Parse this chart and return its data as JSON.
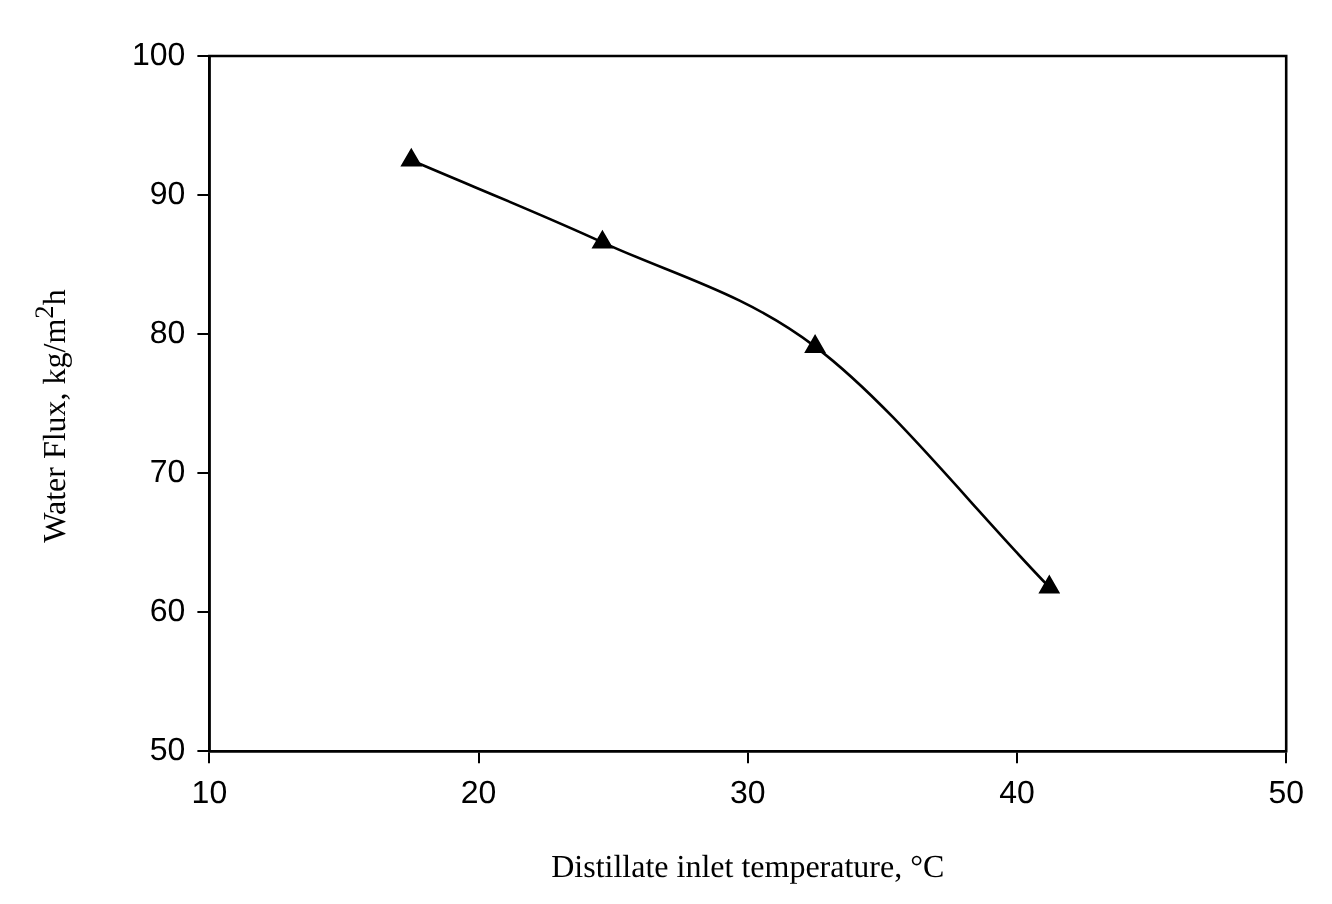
{
  "chart_data": {
    "type": "line",
    "xlabel": "Distillate inlet temperature, °C",
    "ylabel": "Water Flux, kg/m$^{2}$h",
    "x": [
      17.5,
      24.6,
      32.5,
      41.2
    ],
    "series": [
      {
        "color": "#000000",
        "values": [
          92.5,
          86.6,
          79.1,
          61.8
        ]
      }
    ],
    "xlim": [
      10,
      50
    ],
    "xticks": [
      10,
      20,
      30,
      40,
      50
    ],
    "ylim": [
      50,
      100
    ],
    "yticks": [
      50,
      60,
      70,
      80,
      90,
      100
    ],
    "grid": false,
    "legend": false,
    "marker": "triangle",
    "line_style": "solid"
  }
}
